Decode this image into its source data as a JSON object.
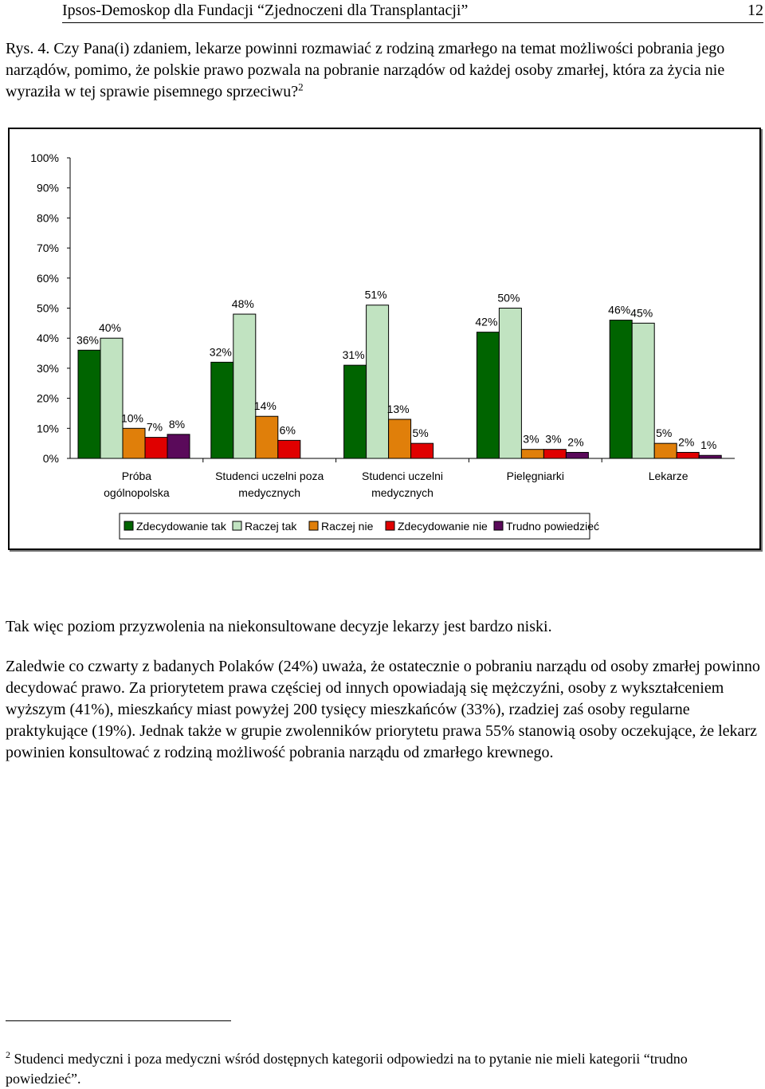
{
  "header": {
    "title": "Ipsos-Demoskop dla Fundacji “Zjednoczeni dla Transplantacji”",
    "page_number": "12"
  },
  "question": {
    "text": "Rys. 4. Czy Pana(i) zdaniem, lekarze powinni rozmawiać z rodziną zmarłego na temat możliwości pobrania jego narządów, pomimo, że polskie prawo pozwala na pobranie narządów od każdej osoby zmarłej, która za życia nie wyraziła w tej sprawie pisemnego sprzeciwu?",
    "footnote_ref": "2"
  },
  "chart_data": {
    "type": "bar",
    "categories": [
      [
        "Próba",
        "ogólnopolska"
      ],
      [
        "Studenci uczelni poza",
        "medycznych"
      ],
      [
        "Studenci uczelni",
        "medycznych"
      ],
      [
        "Pielęgniarki"
      ],
      [
        "Lekarze"
      ]
    ],
    "series": [
      {
        "name": "Zdecydowanie tak",
        "color": "#006400",
        "values": [
          36,
          32,
          31,
          42,
          46
        ]
      },
      {
        "name": "Raczej tak",
        "color": "#C1E3C1",
        "values": [
          40,
          48,
          51,
          50,
          45
        ]
      },
      {
        "name": "Raczej nie",
        "color": "#E07F0A",
        "values": [
          10,
          14,
          13,
          3,
          5
        ]
      },
      {
        "name": "Zdecydowanie nie",
        "color": "#E00000",
        "values": [
          7,
          6,
          5,
          3,
          2
        ]
      },
      {
        "name": "Trudno powiedzieć",
        "color": "#5A0A5A",
        "values": [
          8,
          null,
          null,
          2,
          1
        ]
      }
    ],
    "data_labels": [
      [
        "36%",
        "40%",
        "10%",
        "7%",
        "8%"
      ],
      [
        "32%",
        "48%",
        "14%",
        "6%",
        ""
      ],
      [
        "31%",
        "51%",
        "13%",
        "5%",
        ""
      ],
      [
        "42%",
        "50%",
        "3%",
        "3%",
        "2%"
      ],
      [
        "46%",
        "45%",
        "5%",
        "2%",
        "1%"
      ]
    ],
    "y_ticks": [
      "0%",
      "10%",
      "20%",
      "30%",
      "40%",
      "50%",
      "60%",
      "70%",
      "80%",
      "90%",
      "100%"
    ],
    "ylim": [
      0,
      100
    ],
    "legend_position": "bottom",
    "grid": false
  },
  "paragraphs": {
    "p1": "Tak więc poziom przyzwolenia na niekonsultowane decyzje lekarzy jest bardzo niski.",
    "p2": "Zaledwie co czwarty z badanych Polaków (24%) uważa, że ostatecznie o pobraniu narządu od osoby zmarłej powinno decydować prawo. Za priorytetem prawa częściej od innych opowiadają się mężczyźni, osoby z wykształceniem wyższym (41%), mieszkańcy miast powyżej 200 tysięcy mieszkańców (33%), rzadziej zaś osoby regularne praktykujące (19%). Jednak także w grupie zwolenników priorytetu prawa 55% stanowią osoby oczekujące, że lekarz powinien konsultować z rodziną możliwość pobrania narządu od zmarłego krewnego."
  },
  "footnote": {
    "number": "2",
    "text": "Studenci medyczni i poza medyczni wśród dostępnych kategorii odpowiedzi na to pytanie nie mieli kategorii “trudno powiedzieć”."
  }
}
